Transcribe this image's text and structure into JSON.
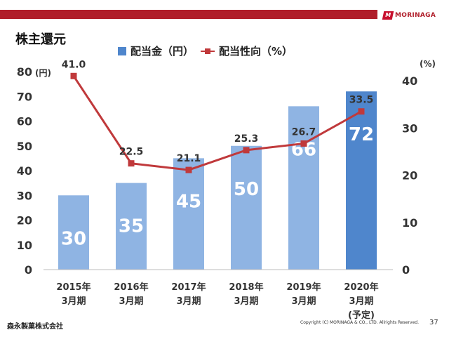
{
  "header": {
    "logo_mark": "M",
    "logo_text": "MORINAGA"
  },
  "page_title": "株主還元",
  "legend": {
    "bar_label": "配当金（円）",
    "line_label": "配当性向（%）"
  },
  "chart_data": {
    "type": "bar",
    "categories": [
      [
        "2015年",
        "3月期"
      ],
      [
        "2016年",
        "3月期"
      ],
      [
        "2017年",
        "3月期"
      ],
      [
        "2018年",
        "3月期"
      ],
      [
        "2019年",
        "3月期"
      ],
      [
        "2020年",
        "3月期",
        "(予定)"
      ]
    ],
    "series": [
      {
        "name": "配当金（円）",
        "type": "bar",
        "axis": "left",
        "values": [
          30,
          35,
          45,
          50,
          66,
          72
        ],
        "labels": [
          "30",
          "35",
          "45",
          "50",
          "66",
          "72"
        ],
        "colors": [
          "#8fb4e3",
          "#8fb4e3",
          "#8fb4e3",
          "#8fb4e3",
          "#8fb4e3",
          "#4f86cc"
        ]
      },
      {
        "name": "配当性向（%）",
        "type": "line",
        "axis": "right",
        "values": [
          41.0,
          22.5,
          21.1,
          25.3,
          26.7,
          33.5
        ],
        "labels": [
          "41.0",
          "22.5",
          "21.1",
          "25.3",
          "26.7",
          "33.5"
        ],
        "color": "#c0393b"
      }
    ],
    "y_left": {
      "unit": "(円)",
      "min": 0,
      "max": 80,
      "ticks": [
        0,
        10,
        20,
        30,
        40,
        50,
        60,
        70,
        80
      ]
    },
    "y_right": {
      "unit": "(%)",
      "min": 0,
      "max": 40,
      "ticks": [
        0,
        10,
        20,
        30,
        40
      ]
    },
    "grid": false,
    "legend_position": "top"
  },
  "footer": {
    "company": "森永製菓株式会社",
    "copyright": "Copyright (C) MORINAGA & CO., LTD. Allrights Reserved.",
    "page_number": "37"
  }
}
